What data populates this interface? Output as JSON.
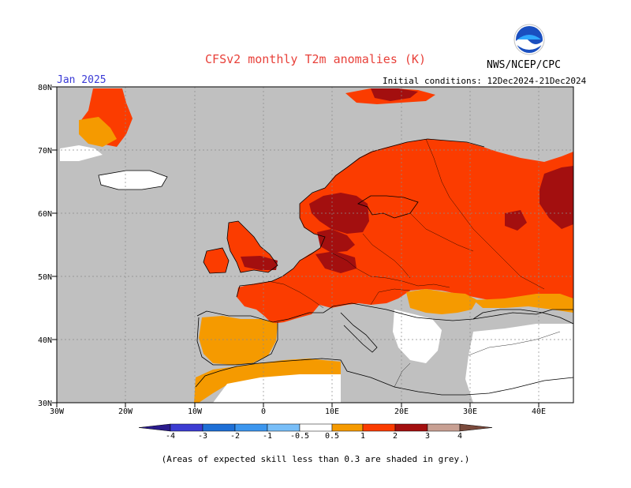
{
  "header": {
    "title": "CFSv2 monthly T2m anomalies (K)",
    "agency": "NWS/NCEP/CPC",
    "month": "Jan 2025",
    "initial_conditions": "Initial conditions: 12Dec2024-21Dec2024"
  },
  "map": {
    "lat_labels": [
      "80N",
      "70N",
      "60N",
      "50N",
      "40N",
      "30N"
    ],
    "lon_labels": [
      "30W",
      "20W",
      "10W",
      "0",
      "10E",
      "20E",
      "30E",
      "40E"
    ],
    "lat_values": [
      80,
      70,
      60,
      50,
      40,
      30
    ],
    "lon_values": [
      -30,
      -20,
      -10,
      0,
      10,
      20,
      30,
      40
    ]
  },
  "colorbar": {
    "labels": [
      "-4",
      "-3",
      "-2",
      "-1",
      "-0.5",
      "0.5",
      "1",
      "2",
      "3",
      "4"
    ],
    "colors": [
      "#2a1b8c",
      "#3c3cd2",
      "#1e6fd6",
      "#3c96ee",
      "#78bef8",
      "#ffffff",
      "#f59a00",
      "#fb3c00",
      "#a30f0f",
      "#c8a093",
      "#7a4a3c"
    ]
  },
  "footnote": "(Areas of expected skill less than 0.3 are shaded in grey.)",
  "colors": {
    "grey": "#c0c0c0",
    "title": "#e8413a",
    "month": "#3a3ad6"
  }
}
